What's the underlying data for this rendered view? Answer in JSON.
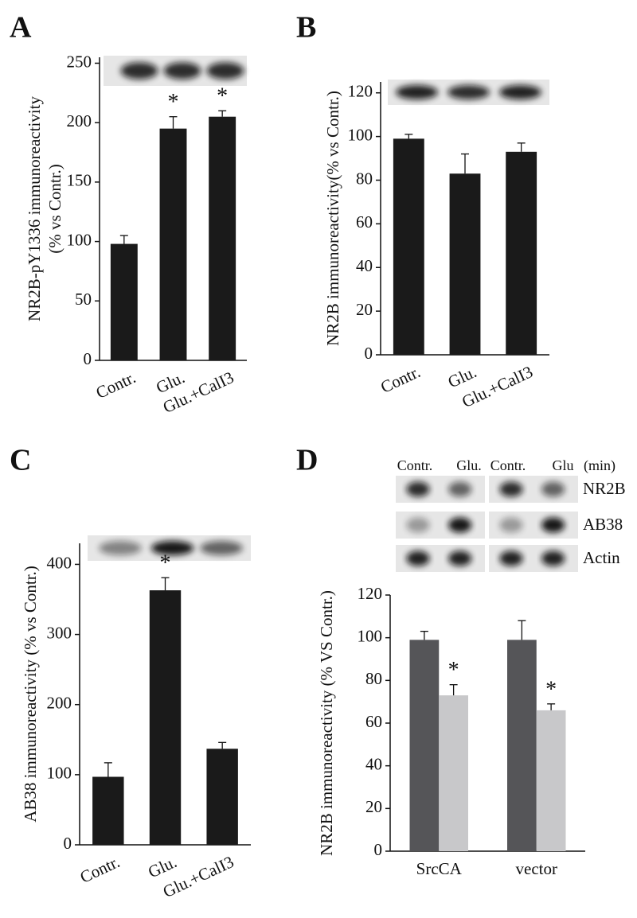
{
  "chart_data": [
    {
      "type": "bar",
      "label": "A",
      "ylabel": [
        "NR2B-pY1336 immunoreactivity",
        "(% vs Contr.)"
      ],
      "categories": [
        "Contr.",
        "Glu.",
        "Glu.+CalI3"
      ],
      "values": [
        98,
        195,
        205
      ],
      "errors": [
        7,
        10,
        5
      ],
      "significant": [
        false,
        true,
        true
      ],
      "significance_marker": "*",
      "color": "#1a1a1a",
      "ylim": [
        0,
        255
      ],
      "yticks": [
        0,
        50,
        100,
        150,
        200,
        250
      ]
    },
    {
      "type": "bar",
      "label": "B",
      "ylabel": [
        "NR2B immunoreactivity(% vs Contr.)"
      ],
      "categories": [
        "Contr.",
        "Glu.",
        "Glu.+CalI3"
      ],
      "values": [
        99,
        83,
        93
      ],
      "errors": [
        2,
        9,
        4
      ],
      "color": "#1a1a1a",
      "ylim": [
        0,
        125
      ],
      "yticks": [
        0,
        20,
        40,
        60,
        80,
        100,
        120
      ]
    },
    {
      "type": "bar",
      "label": "C",
      "ylabel": [
        "AB38 immunoreactivity (% vs Contr.)"
      ],
      "categories": [
        "Contr.",
        "Glu.",
        "Glu.+CalI3"
      ],
      "values": [
        97,
        363,
        137
      ],
      "errors": [
        20,
        18,
        9
      ],
      "significant": [
        false,
        true,
        false
      ],
      "significance_marker": "*",
      "color": "#1a1a1a",
      "ylim": [
        0,
        430
      ],
      "yticks": [
        0,
        100,
        200,
        300,
        400
      ]
    },
    {
      "type": "grouped_bar",
      "label": "D",
      "ylabel": [
        "NR2B immunoreactivity  (% VS Contr.)"
      ],
      "categories": [
        "SrcCA",
        "vector"
      ],
      "series": [
        {
          "color": "#555558",
          "values": [
            99,
            99
          ],
          "errors": [
            4,
            9
          ]
        },
        {
          "color": "#c8c8ca",
          "values": [
            73,
            66
          ],
          "errors": [
            5,
            3
          ],
          "significant": [
            true,
            true
          ]
        }
      ],
      "significance_marker": "*",
      "blot_columns": [
        "Contr.",
        "Glu.",
        "Contr.",
        "Glu"
      ],
      "blot_unit": "(min)",
      "blot_rows": [
        "NR2B",
        "AB38",
        "Actin"
      ],
      "ylim": [
        0,
        120
      ],
      "yticks": [
        0,
        20,
        40,
        60,
        80,
        100,
        120
      ]
    }
  ]
}
